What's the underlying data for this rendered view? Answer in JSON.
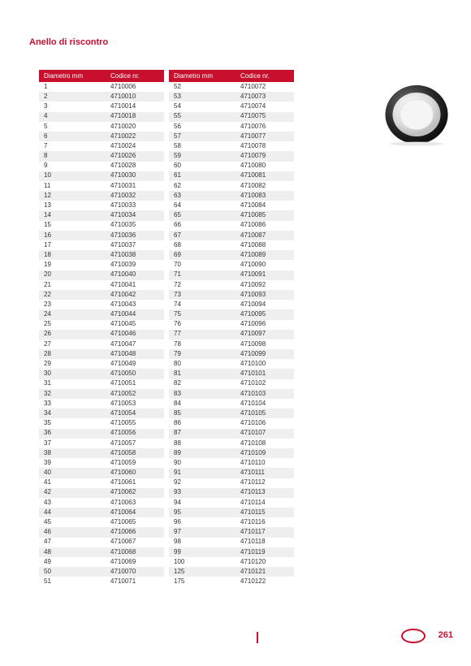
{
  "title": "Anello di riscontro",
  "page_number": "261",
  "headers": {
    "diametro": "Diametro mm",
    "codice": "Codice nr."
  },
  "small_labels": {
    "a": "",
    "b": "",
    "c": ""
  },
  "table1": [
    {
      "d": "1",
      "c": "4710006"
    },
    {
      "d": "2",
      "c": "4710010"
    },
    {
      "d": "3",
      "c": "4710014"
    },
    {
      "d": "4",
      "c": "4710018"
    },
    {
      "d": "5",
      "c": "4710020"
    },
    {
      "d": "6",
      "c": "4710022"
    },
    {
      "d": "7",
      "c": "4710024"
    },
    {
      "d": "8",
      "c": "4710026"
    },
    {
      "d": "9",
      "c": "4710028"
    },
    {
      "d": "10",
      "c": "4710030"
    },
    {
      "d": "11",
      "c": "4710031"
    },
    {
      "d": "12",
      "c": "4710032"
    },
    {
      "d": "13",
      "c": "4710033"
    },
    {
      "d": "14",
      "c": "4710034"
    },
    {
      "d": "15",
      "c": "4710035"
    },
    {
      "d": "16",
      "c": "4710036"
    },
    {
      "d": "17",
      "c": "4710037"
    },
    {
      "d": "18",
      "c": "4710038"
    },
    {
      "d": "19",
      "c": "4710039"
    },
    {
      "d": "20",
      "c": "4710040"
    },
    {
      "d": "21",
      "c": "4710041"
    },
    {
      "d": "22",
      "c": "4710042"
    },
    {
      "d": "23",
      "c": "4710043"
    },
    {
      "d": "24",
      "c": "4710044"
    },
    {
      "d": "25",
      "c": "4710045"
    },
    {
      "d": "26",
      "c": "4710046"
    },
    {
      "d": "27",
      "c": "4710047"
    },
    {
      "d": "28",
      "c": "4710048"
    },
    {
      "d": "29",
      "c": "4710049"
    },
    {
      "d": "30",
      "c": "4710050"
    },
    {
      "d": "31",
      "c": "4710051"
    },
    {
      "d": "32",
      "c": "4710052"
    },
    {
      "d": "33",
      "c": "4710053"
    },
    {
      "d": "34",
      "c": "4710054"
    },
    {
      "d": "35",
      "c": "4710055"
    },
    {
      "d": "36",
      "c": "4710056"
    },
    {
      "d": "37",
      "c": "4710057"
    },
    {
      "d": "38",
      "c": "4710058"
    },
    {
      "d": "39",
      "c": "4710059"
    },
    {
      "d": "40",
      "c": "4710060"
    },
    {
      "d": "41",
      "c": "4710061"
    },
    {
      "d": "42",
      "c": "4710062"
    },
    {
      "d": "43",
      "c": "4710063"
    },
    {
      "d": "44",
      "c": "4710064"
    },
    {
      "d": "45",
      "c": "4710065"
    },
    {
      "d": "46",
      "c": "4710066"
    },
    {
      "d": "47",
      "c": "4710067"
    },
    {
      "d": "48",
      "c": "4710068"
    },
    {
      "d": "49",
      "c": "4710069"
    },
    {
      "d": "50",
      "c": "4710070"
    },
    {
      "d": "51",
      "c": "4710071"
    }
  ],
  "table2": [
    {
      "d": "52",
      "c": "4710072"
    },
    {
      "d": "53",
      "c": "4710073"
    },
    {
      "d": "54",
      "c": "4710074"
    },
    {
      "d": "55",
      "c": "4710075"
    },
    {
      "d": "56",
      "c": "4710076"
    },
    {
      "d": "57",
      "c": "4710077"
    },
    {
      "d": "58",
      "c": "4710078"
    },
    {
      "d": "59",
      "c": "4710079"
    },
    {
      "d": "60",
      "c": "4710080"
    },
    {
      "d": "61",
      "c": "4710081"
    },
    {
      "d": "62",
      "c": "4710082"
    },
    {
      "d": "63",
      "c": "4710083"
    },
    {
      "d": "64",
      "c": "4710084"
    },
    {
      "d": "65",
      "c": "4710085"
    },
    {
      "d": "66",
      "c": "4710086"
    },
    {
      "d": "67",
      "c": "4710087"
    },
    {
      "d": "68",
      "c": "4710088"
    },
    {
      "d": "69",
      "c": "4710089"
    },
    {
      "d": "70",
      "c": "4710090"
    },
    {
      "d": "71",
      "c": "4710091"
    },
    {
      "d": "72",
      "c": "4710092"
    },
    {
      "d": "73",
      "c": "4710093"
    },
    {
      "d": "74",
      "c": "4710094"
    },
    {
      "d": "75",
      "c": "4710095"
    },
    {
      "d": "76",
      "c": "4710096"
    },
    {
      "d": "77",
      "c": "4710097"
    },
    {
      "d": "78",
      "c": "4710098"
    },
    {
      "d": "79",
      "c": "4710099"
    },
    {
      "d": "80",
      "c": "4710100"
    },
    {
      "d": "81",
      "c": "4710101"
    },
    {
      "d": "82",
      "c": "4710102"
    },
    {
      "d": "83",
      "c": "4710103"
    },
    {
      "d": "84",
      "c": "4710104"
    },
    {
      "d": "85",
      "c": "4710105"
    },
    {
      "d": "86",
      "c": "4710106"
    },
    {
      "d": "87",
      "c": "4710107"
    },
    {
      "d": "88",
      "c": "4710108"
    },
    {
      "d": "89",
      "c": "4710109"
    },
    {
      "d": "90",
      "c": "4710110"
    },
    {
      "d": "91",
      "c": "4710111"
    },
    {
      "d": "92",
      "c": "4710112"
    },
    {
      "d": "93",
      "c": "4710113"
    },
    {
      "d": "94",
      "c": "4710114"
    },
    {
      "d": "95",
      "c": "4710115"
    },
    {
      "d": "96",
      "c": "4710116"
    },
    {
      "d": "97",
      "c": "4710117"
    },
    {
      "d": "98",
      "c": "4710118"
    },
    {
      "d": "99",
      "c": "4710119"
    },
    {
      "d": "100",
      "c": "4710120"
    },
    {
      "d": "125",
      "c": "4710121"
    },
    {
      "d": "175",
      "c": "4710122"
    }
  ],
  "colors": {
    "brand": "#c8102e",
    "row_alt": "#efefef",
    "text": "#333333",
    "bg": "#ffffff"
  }
}
